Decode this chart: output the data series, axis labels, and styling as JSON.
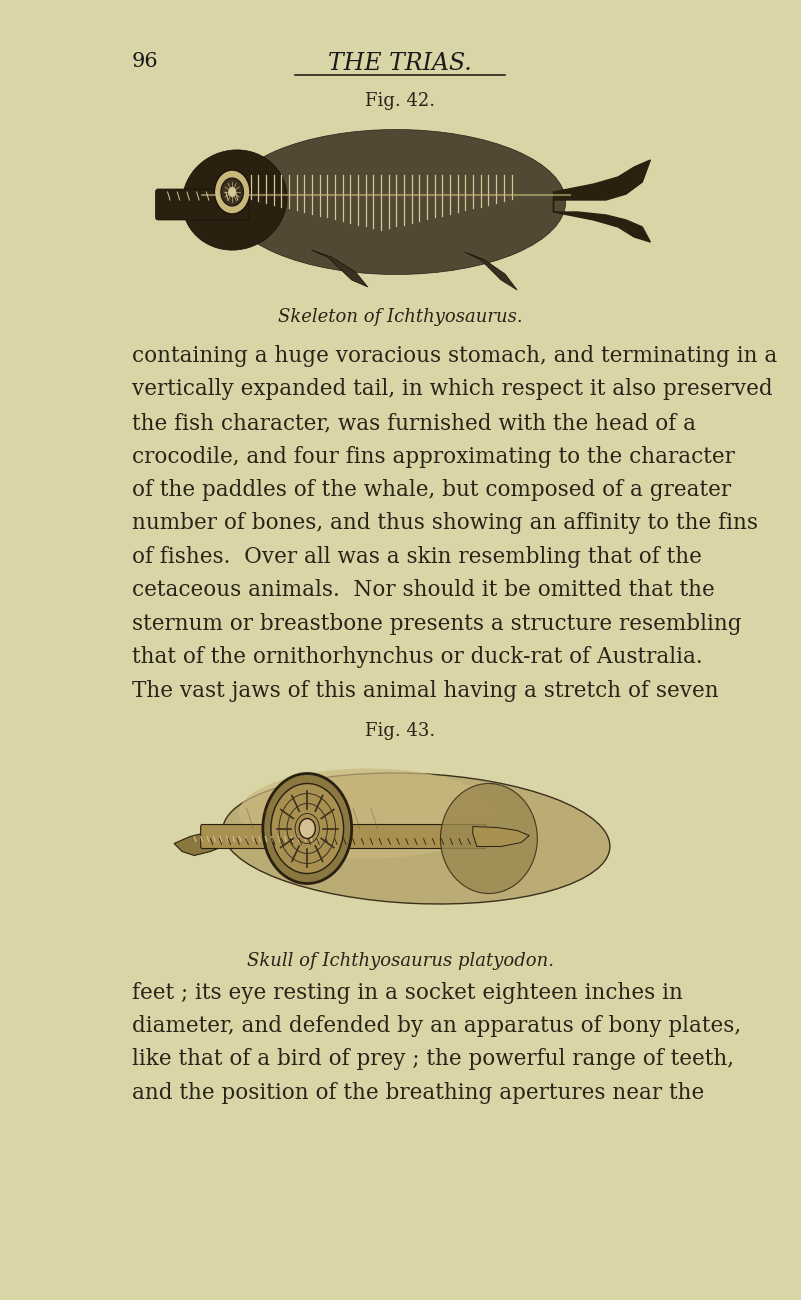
{
  "bg_color": "#d9d5a7",
  "page_number": "96",
  "header_title": "THE TRIAS.",
  "fig42_label": "Fig. 42.",
  "fig42_caption": "Skeleton of Ichthyosaurus.",
  "fig43_label": "Fig. 43.",
  "fig43_caption": "Skull of Ichthyosaurus platyodon.",
  "body_text_1": "containing a huge voracious stomach, and terminating in a vertically expanded tail, in which respect it also preserved the fish character, was furnished with the head of a crocodile, and four fins approximating to the character of the paddles of the whale, but composed of a greater number of bones, and thus showing an affinity to the fins of fishes.  Over all was a skin resembling that of the cetaceous animals.  Nor should it be omitted that the sternum or breastbone presents a structure resembling that of the ornithorhynchus or duck-rat of Australia. The vast jaws of this animal having a stretch of seven",
  "body_text_2": "feet ; its eye resting in a socket eighteen inches in diameter, and defended by an apparatus of bony plates, like that of a bird of prey ; the powerful range of teeth, and the position of the breathing apertures near the",
  "text_color": "#2a2318",
  "header_color": "#1a1a1a",
  "line_color": "#2a2318",
  "font_size_body": 15.5,
  "font_size_caption_italic": 13,
  "font_size_header": 17,
  "font_size_pagenum": 15,
  "font_size_fig_label": 13
}
